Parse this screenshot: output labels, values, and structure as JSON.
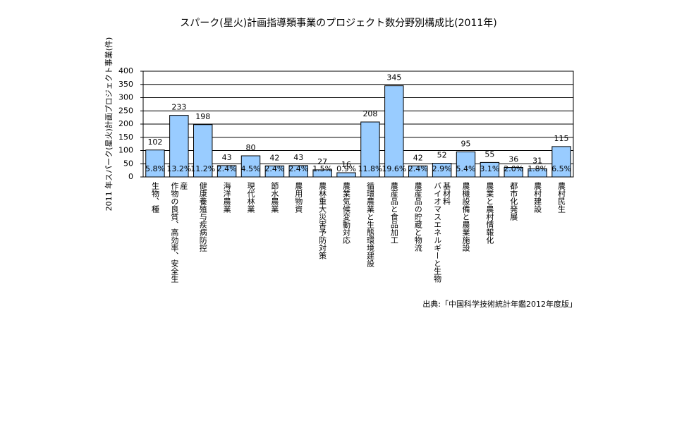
{
  "chart_data": {
    "type": "bar",
    "title": "スパーク(星火)計画指導類事業のプロジェクト数分野別構成比(2011年)",
    "y_label": "2011 年スパーク(星火)計画プロジェクト事業(件)",
    "source": "出典:「中国科学技術統計年鑑2012年度版」",
    "categories": [
      "生物、種",
      "作物の良質、高効率、安全生産",
      "健康養殖与疾病防控",
      "海洋農業",
      "現代林業",
      "節水農業",
      "農用物資",
      "農林重大災害予防対策",
      "農業気候変動対応",
      "循環農業と生態環境建設",
      "農産品と食品加工",
      "農産品の貯蔵と物流",
      "バイオマスエネルギーと生物基材料",
      "農機設備と農業施設",
      "農業と農村情報化",
      "都市化発展",
      "農村建設",
      "農村民生"
    ],
    "values": [
      102,
      233,
      198,
      43,
      80,
      42,
      43,
      27,
      16,
      208,
      345,
      42,
      52,
      95,
      55,
      36,
      31,
      115
    ],
    "percent_labels": [
      "5.8%",
      "13.2%",
      "11.2%",
      "2.4%",
      "4.5%",
      "2.4%",
      "2.4%",
      "1.5%",
      "0.9%",
      "11.8%",
      "19.6%",
      "2.4%",
      "2.9%",
      "5.4%",
      "3.1%",
      "2.0%",
      "1.8%",
      "6.5%"
    ],
    "color": "#99ccff",
    "ylim": [
      0,
      400
    ],
    "yticks": [
      0,
      50,
      100,
      150,
      200,
      250,
      300,
      350,
      400
    ],
    "grid": true
  }
}
